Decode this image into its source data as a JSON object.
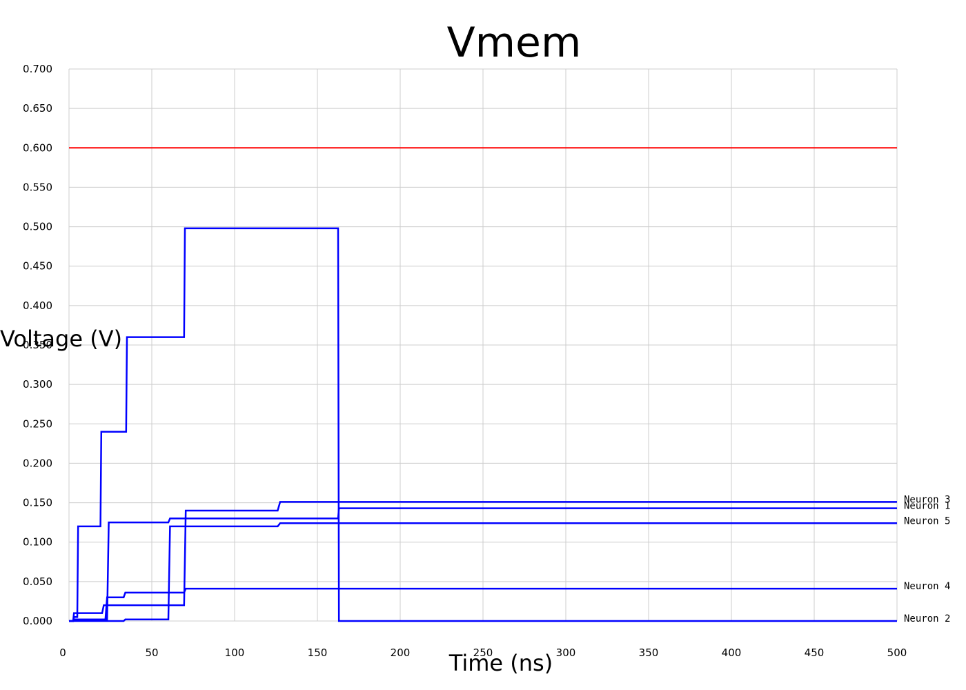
{
  "chart_data": {
    "type": "line",
    "title": "Vmem",
    "xlabel": "Time (ns)",
    "ylabel": "Voltage (V)",
    "xlim": [
      0,
      500
    ],
    "ylim": [
      0,
      0.7
    ],
    "x_ticks": [
      "0",
      "50",
      "100",
      "150",
      "200",
      "250",
      "300",
      "350",
      "400",
      "450",
      "500"
    ],
    "y_ticks": [
      "0.000",
      "0.050",
      "0.100",
      "0.150",
      "0.200",
      "0.250",
      "0.300",
      "0.350",
      "0.400",
      "0.450",
      "0.500",
      "0.550",
      "0.600",
      "0.650",
      "0.700"
    ],
    "grid": true,
    "threshold": {
      "value": 0.6,
      "color": "#ff0000"
    },
    "series_color": "#0000ff",
    "series": [
      {
        "name": "Neuron 2",
        "x": [
          0,
          2.5,
          3,
          5,
          5.5,
          19,
          19.5,
          34.5,
          35,
          69.5,
          70,
          162.5,
          163,
          500
        ],
        "y": [
          0,
          0,
          0.005,
          0.005,
          0.12,
          0.12,
          0.24,
          0.24,
          0.36,
          0.36,
          0.498,
          0.498,
          0,
          0
        ]
      },
      {
        "name": "Neuron 3",
        "x": [
          0,
          2.5,
          3,
          20,
          21,
          69.5,
          70.5,
          126,
          127.5,
          500
        ],
        "y": [
          0,
          0,
          0.01,
          0.01,
          0.02,
          0.02,
          0.14,
          0.14,
          0.151,
          0.151
        ]
      },
      {
        "name": "Neuron 1",
        "x": [
          0,
          2.5,
          3,
          23,
          24,
          60,
          61,
          162.5,
          163,
          500
        ],
        "y": [
          0,
          0,
          0.002,
          0.002,
          0.125,
          0.125,
          0.13,
          0.13,
          0.143,
          0.143
        ]
      },
      {
        "name": "Neuron 5",
        "x": [
          0,
          33,
          34,
          60,
          61,
          126,
          127.5,
          500
        ],
        "y": [
          0,
          0,
          0.002,
          0.002,
          0.12,
          0.12,
          0.124,
          0.124
        ]
      },
      {
        "name": "Neuron 4",
        "x": [
          0,
          2.5,
          3,
          22,
          23,
          33,
          34,
          69.5,
          70.5,
          500
        ],
        "y": [
          0,
          0,
          0.002,
          0.002,
          0.03,
          0.03,
          0.036,
          0.036,
          0.041,
          0.041
        ]
      }
    ],
    "legend_labels": [
      {
        "name": "Neuron 3",
        "y": 0.151
      },
      {
        "name": "Neuron 1",
        "y": 0.143
      },
      {
        "name": "Neuron 5",
        "y": 0.124
      },
      {
        "name": "Neuron 4",
        "y": 0.041
      },
      {
        "name": "Neuron 2",
        "y": 0.0
      }
    ]
  }
}
